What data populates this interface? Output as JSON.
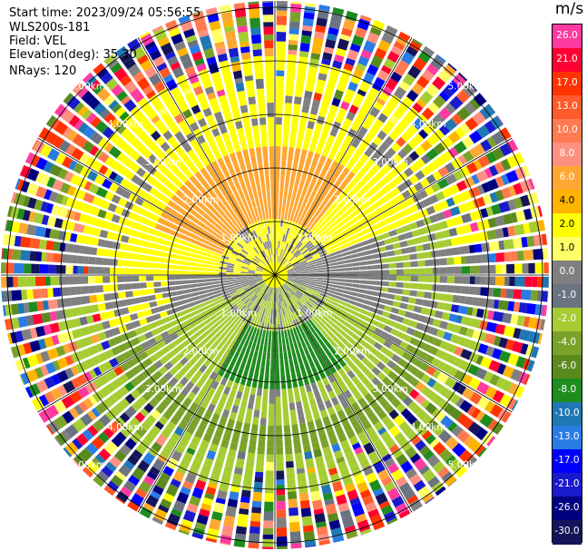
{
  "info": {
    "start_time": "Start time: 2023/09/24 05:56:55",
    "instrument": "WLS200s-181",
    "field": "Field: VEL",
    "elevation": "Elevation(deg): 35.30",
    "nrays": "NRays: 120"
  },
  "colorbar": {
    "unit": "m/s",
    "ticks": [
      "26.0",
      "21.0",
      "17.0",
      "13.0",
      "10.0",
      "8.0",
      "6.0",
      "4.0",
      "2.0",
      "1.0",
      "0.0",
      "-1.0",
      "-2.0",
      "-4.0",
      "-6.0",
      "-8.0",
      "-10.0",
      "-13.0",
      "-17.0",
      "-21.0",
      "-26.0",
      "-30.0"
    ],
    "colors": [
      "#ff3aa0",
      "#ff0033",
      "#ff3300",
      "#ff5a2a",
      "#ff7a50",
      "#ff9080",
      "#ffa733",
      "#ffb400",
      "#ffff00",
      "#ffff66",
      "#808080",
      "#6b7280",
      "#a6cc33",
      "#7aa22a",
      "#5a8a1e",
      "#1e8c1e",
      "#1f77b4",
      "#2a7be4",
      "#0000ff",
      "#1a1acd",
      "#000080",
      "#14145a"
    ],
    "dark_label_indices": [
      7,
      8,
      9
    ]
  },
  "ring_labels": [
    "1.00km",
    "2.00km",
    "3.00km",
    "4.00km",
    "5.00km"
  ],
  "ring_label_items": [
    {
      "text": "1.00km"
    },
    {
      "text": "1.00km"
    },
    {
      "text": "1.00km"
    },
    {
      "text": "1.00km"
    },
    {
      "text": "2.00km"
    },
    {
      "text": "2.00km"
    },
    {
      "text": "2.00km"
    },
    {
      "text": "2.00km"
    },
    {
      "text": "3.00km"
    },
    {
      "text": "3.00km"
    },
    {
      "text": "3.00km"
    },
    {
      "text": "3.00km"
    },
    {
      "text": "4.00km"
    },
    {
      "text": "4.00km"
    },
    {
      "text": "4.00km"
    },
    {
      "text": "4.00km"
    },
    {
      "text": "5.00km"
    },
    {
      "text": "5.00km"
    },
    {
      "text": "5.00km"
    },
    {
      "text": "5.00km"
    }
  ]
}
